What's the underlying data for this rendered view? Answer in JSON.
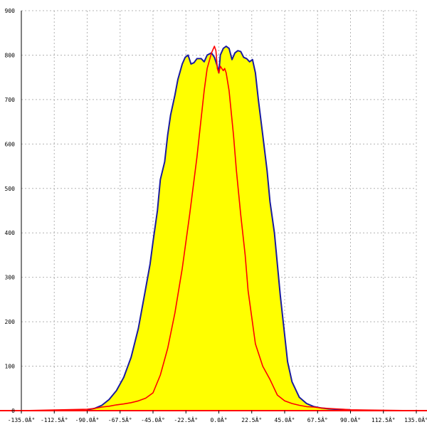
{
  "chart_data": {
    "type": "area",
    "title": "",
    "xlabel": "",
    "ylabel": "",
    "xlim": [
      -135,
      135
    ],
    "ylim": [
      0,
      900
    ],
    "grid": true,
    "x_ticks": [
      -135,
      -112.5,
      -90,
      -67.5,
      -45,
      -22.5,
      0,
      22.5,
      45,
      67.5,
      90,
      112.5,
      135
    ],
    "x_tick_labels": [
      "-135.0Â°",
      "-112.5Â°",
      "-90.0Â°",
      "-67.5Â°",
      "-45.0Â°",
      "-22.5Â°",
      "0.0Â°",
      "22.5Â°",
      "45.0Â°",
      "67.5Â°",
      "90.0Â°",
      "112.5Â°",
      "135.0Â°"
    ],
    "y_ticks": [
      100,
      200,
      300,
      400,
      500,
      600,
      700,
      800,
      900
    ],
    "y_tick_labels": [
      "100",
      "200",
      "300",
      "400",
      "500",
      "600",
      "700",
      "800",
      "900"
    ],
    "zero_label": "0",
    "series": [
      {
        "style": "filled",
        "color": "#1a1aa0",
        "fill": "#ffff00",
        "x": [
          -90,
          -85,
          -80,
          -75,
          -70,
          -65,
          -60,
          -55,
          -50,
          -47,
          -45,
          -42,
          -40,
          -37,
          -35,
          -33,
          -30,
          -28,
          -25,
          -23,
          -21,
          -19,
          -17,
          -15,
          -12,
          -10,
          -8,
          -5,
          -3,
          -1,
          0,
          1,
          3,
          5,
          7,
          9,
          11,
          13,
          15,
          17,
          19,
          21,
          23,
          25,
          27,
          30,
          33,
          35,
          38,
          40,
          42,
          45,
          47,
          50,
          55,
          60,
          65,
          70,
          75,
          80,
          85,
          90
        ],
        "y": [
          2,
          5,
          12,
          25,
          45,
          75,
          120,
          185,
          275,
          330,
          380,
          450,
          520,
          560,
          620,
          665,
          710,
          745,
          780,
          795,
          800,
          780,
          783,
          792,
          792,
          785,
          800,
          805,
          795,
          775,
          760,
          800,
          815,
          820,
          815,
          790,
          805,
          810,
          808,
          795,
          792,
          785,
          790,
          760,
          700,
          620,
          540,
          470,
          400,
          330,
          260,
          170,
          110,
          65,
          30,
          16,
          9,
          6,
          4,
          3,
          2,
          2
        ]
      },
      {
        "style": "line",
        "color": "#ff0000",
        "x": [
          -135,
          -90,
          -85,
          -80,
          -75,
          -70,
          -65,
          -60,
          -55,
          -50,
          -45,
          -40,
          -35,
          -30,
          -25,
          -20,
          -15,
          -12,
          -10,
          -8,
          -5,
          -3,
          -2,
          -1,
          0,
          1,
          2,
          3,
          4,
          5,
          7,
          10,
          12,
          15,
          18,
          20,
          25,
          30,
          35,
          40,
          45,
          50,
          55,
          60,
          65,
          70,
          75,
          80,
          85,
          90,
          135
        ],
        "y": [
          0,
          3,
          5,
          8,
          10,
          13,
          15,
          18,
          22,
          28,
          40,
          80,
          140,
          220,
          320,
          440,
          570,
          660,
          720,
          770,
          805,
          820,
          810,
          770,
          760,
          775,
          770,
          765,
          770,
          760,
          720,
          620,
          540,
          440,
          350,
          270,
          150,
          100,
          70,
          35,
          22,
          16,
          12,
          9,
          8,
          6,
          5,
          4,
          3,
          2,
          0
        ]
      }
    ]
  },
  "colors": {
    "background": "#ffffff",
    "grid": "#b4b4b4",
    "axis_line": "#000000",
    "x_baseline": "#ff0000"
  }
}
